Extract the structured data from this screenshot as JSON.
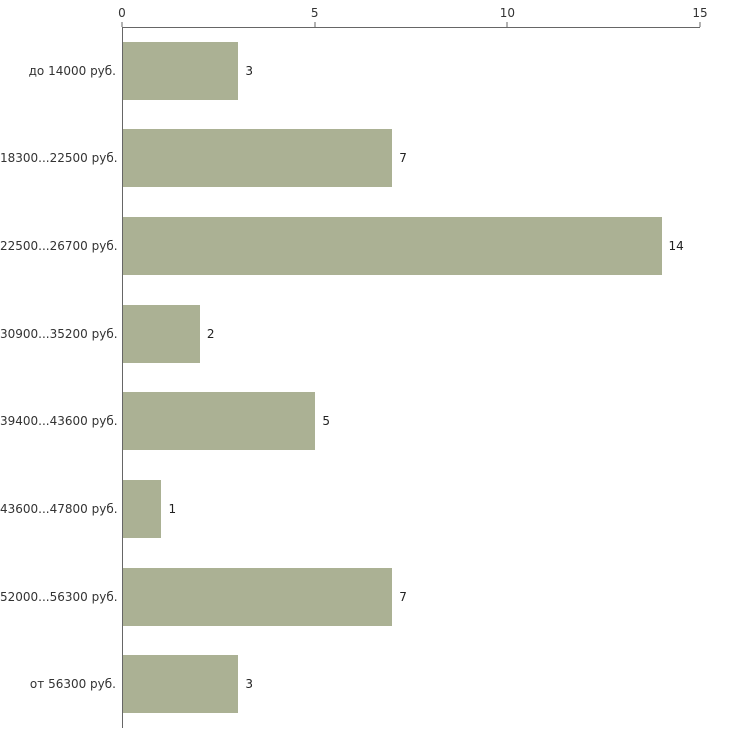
{
  "chart_data": {
    "type": "bar",
    "orientation": "horizontal",
    "title": "",
    "xlabel": "",
    "ylabel": "",
    "categories": [
      "до 14000 руб.",
      "18300...22500 руб.",
      "22500...26700 руб.",
      "30900...35200 руб.",
      "39400...43600 руб.",
      "43600...47800 руб.",
      "52000...56300 руб.",
      "от 56300 руб."
    ],
    "values": [
      3,
      7,
      14,
      2,
      5,
      1,
      7,
      3
    ],
    "x_ticks": [
      "0",
      "5",
      "10",
      "15"
    ],
    "x_tick_values": [
      0,
      5,
      10,
      15
    ],
    "xlim": [
      0,
      15
    ],
    "grid": false,
    "legend": "none",
    "bar_color": "#abb194",
    "axis_color": "#666666",
    "text_color": "#333333",
    "background": "#ffffff"
  }
}
